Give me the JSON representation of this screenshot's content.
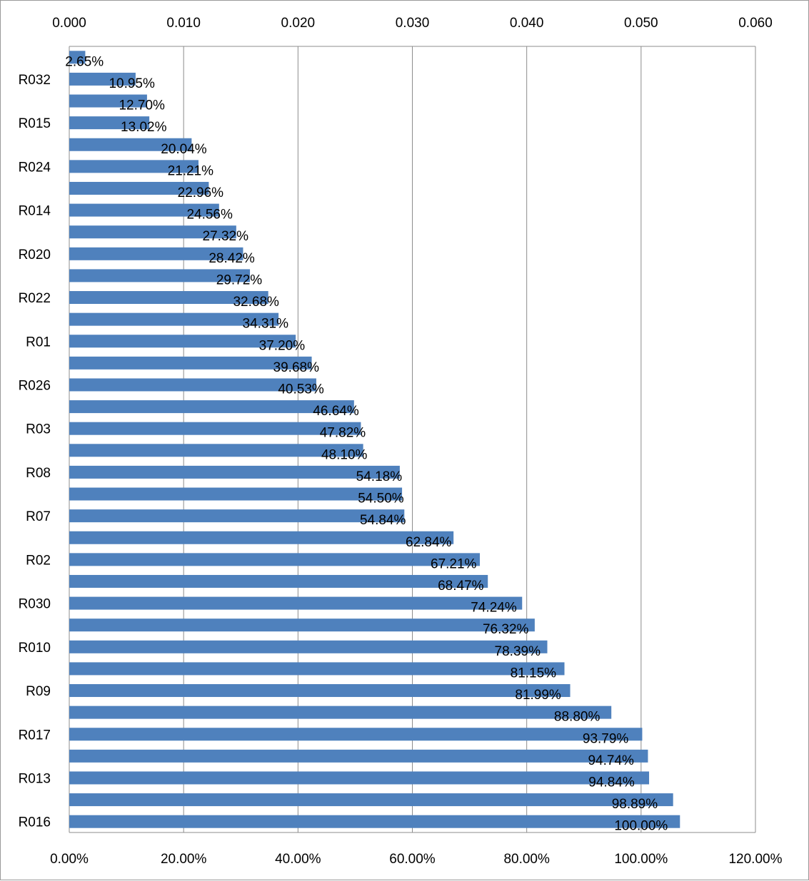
{
  "chart_data": {
    "type": "bar",
    "orientation": "horizontal",
    "top_axis": {
      "ticks": [
        "0.000",
        "0.010",
        "0.020",
        "0.030",
        "0.040",
        "0.050",
        "0.060"
      ],
      "range": [
        0,
        0.06
      ]
    },
    "bottom_axis": {
      "ticks": [
        "0.00%",
        "20.00%",
        "40.00%",
        "60.00%",
        "80.00%",
        "100.00%",
        "120.00%"
      ],
      "range": [
        0,
        120
      ]
    },
    "gridlines": "vertical",
    "bar_color": "#4f81bd",
    "categories": [
      "",
      "R032",
      "",
      "R015",
      "",
      "R024",
      "",
      "R014",
      "",
      "R020",
      "",
      "R022",
      "",
      "R01",
      "",
      "R026",
      "",
      "R03",
      "",
      "R08",
      "",
      "R07",
      "",
      "R02",
      "",
      "R030",
      "",
      "R010",
      "",
      "R09",
      "",
      "R017",
      "",
      "R013",
      "",
      "R016"
    ],
    "values": [
      0.0014,
      0.0058,
      0.0068,
      0.007,
      0.0107,
      0.0113,
      0.0122,
      0.0131,
      0.0146,
      0.0152,
      0.0158,
      0.0174,
      0.0183,
      0.0198,
      0.0212,
      0.0216,
      0.0249,
      0.0255,
      0.0257,
      0.0289,
      0.0291,
      0.0293,
      0.0336,
      0.0359,
      0.0366,
      0.0396,
      0.0407,
      0.0418,
      0.0433,
      0.0438,
      0.0474,
      0.0501,
      0.0506,
      0.0507,
      0.0528,
      0.0534
    ],
    "cumulative_labels": [
      "2.65%",
      "10.95%",
      "12.70%",
      "13.02%",
      "20.04%",
      "21.21%",
      "22.96%",
      "24.56%",
      "27.32%",
      "28.42%",
      "29.72%",
      "32.68%",
      "34.31%",
      "37.20%",
      "39.68%",
      "40.53%",
      "46.64%",
      "47.82%",
      "48.10%",
      "54.18%",
      "54.50%",
      "54.84%",
      "62.84%",
      "67.21%",
      "68.47%",
      "74.24%",
      "76.32%",
      "78.39%",
      "81.15%",
      "81.99%",
      "88.80%",
      "93.79%",
      "94.74%",
      "94.84%",
      "98.89%",
      "100.00%"
    ],
    "cumulative_values": [
      2.65,
      10.95,
      12.7,
      13.02,
      20.04,
      21.21,
      22.96,
      24.56,
      27.32,
      28.42,
      29.72,
      32.68,
      34.31,
      37.2,
      39.68,
      40.53,
      46.64,
      47.82,
      48.1,
      54.18,
      54.5,
      54.84,
      62.84,
      67.21,
      68.47,
      74.24,
      76.32,
      78.39,
      81.15,
      81.99,
      88.8,
      93.79,
      94.74,
      94.84,
      98.89,
      100.0
    ]
  }
}
